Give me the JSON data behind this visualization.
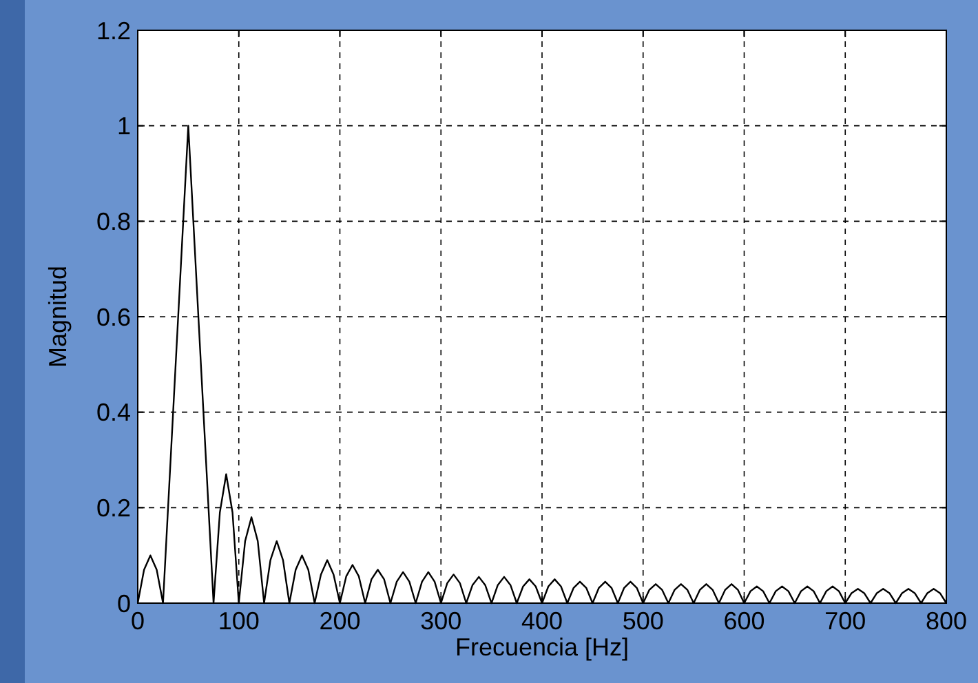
{
  "chart_data": {
    "type": "line",
    "xlabel": "Frecuencia [Hz]",
    "ylabel": "Magnitud",
    "xlim": [
      0,
      800
    ],
    "ylim": [
      0,
      1.2
    ],
    "xticks": [
      0,
      100,
      200,
      300,
      400,
      500,
      600,
      700,
      800
    ],
    "yticks": [
      0,
      0.2,
      0.4,
      0.6,
      0.8,
      1,
      1.2
    ],
    "grid": true,
    "series": [
      {
        "color": "#000000",
        "x": [
          0,
          6.25,
          12.5,
          18.75,
          25,
          31.25,
          37.5,
          43.75,
          50,
          56.25,
          62.5,
          68.75,
          75,
          81.25,
          87.5,
          93.75,
          100,
          106.25,
          112.5,
          118.75,
          125,
          131.25,
          137.5,
          143.75,
          150,
          156.25,
          162.5,
          168.75,
          175,
          181.25,
          187.5,
          193.75,
          200,
          206.25,
          212.5,
          218.75,
          225,
          231.25,
          237.5,
          243.75,
          250,
          256.25,
          262.5,
          268.75,
          275,
          281.25,
          287.5,
          293.75,
          300,
          306.25,
          312.5,
          318.75,
          325,
          331.25,
          337.5,
          343.75,
          350,
          356.25,
          362.5,
          368.75,
          375,
          381.25,
          387.5,
          393.75,
          400,
          406.25,
          412.5,
          418.75,
          425,
          431.25,
          437.5,
          443.75,
          450,
          456.25,
          462.5,
          468.75,
          475,
          481.25,
          487.5,
          493.75,
          500,
          506.25,
          512.5,
          518.75,
          525,
          531.25,
          537.5,
          543.75,
          550,
          556.25,
          562.5,
          568.75,
          575,
          581.25,
          587.5,
          593.75,
          600,
          606.25,
          612.5,
          618.75,
          625,
          631.25,
          637.5,
          643.75,
          650,
          656.25,
          662.5,
          668.75,
          675,
          681.25,
          687.5,
          693.75,
          700,
          706.25,
          712.5,
          718.75,
          725,
          731.25,
          737.5,
          743.75,
          750,
          756.25,
          762.5,
          768.75,
          775,
          781.25,
          787.5,
          793.75,
          800
        ],
        "values": [
          0,
          0.07,
          0.1,
          0.07,
          0,
          0.25,
          0.5,
          0.75,
          1,
          0.75,
          0.5,
          0.25,
          0,
          0.19,
          0.27,
          0.19,
          0,
          0.13,
          0.18,
          0.13,
          0,
          0.09,
          0.13,
          0.09,
          0,
          0.07,
          0.1,
          0.07,
          0,
          0.06,
          0.09,
          0.06,
          0,
          0.056,
          0.08,
          0.056,
          0,
          0.05,
          0.07,
          0.05,
          0,
          0.045,
          0.065,
          0.045,
          0,
          0.045,
          0.065,
          0.045,
          0,
          0.042,
          0.06,
          0.042,
          0,
          0.038,
          0.055,
          0.038,
          0,
          0.038,
          0.055,
          0.038,
          0,
          0.035,
          0.05,
          0.035,
          0,
          0.035,
          0.05,
          0.035,
          0,
          0.032,
          0.045,
          0.032,
          0,
          0.032,
          0.045,
          0.032,
          0,
          0.032,
          0.045,
          0.032,
          0,
          0.028,
          0.04,
          0.028,
          0,
          0.028,
          0.04,
          0.028,
          0,
          0.028,
          0.04,
          0.028,
          0,
          0.028,
          0.04,
          0.028,
          0,
          0.025,
          0.035,
          0.025,
          0,
          0.025,
          0.035,
          0.025,
          0,
          0.025,
          0.035,
          0.025,
          0,
          0.025,
          0.035,
          0.025,
          0,
          0.021,
          0.03,
          0.021,
          0,
          0.021,
          0.03,
          0.021,
          0,
          0.021,
          0.03,
          0.021,
          0,
          0.021,
          0.03,
          0.021,
          0
        ]
      }
    ]
  }
}
